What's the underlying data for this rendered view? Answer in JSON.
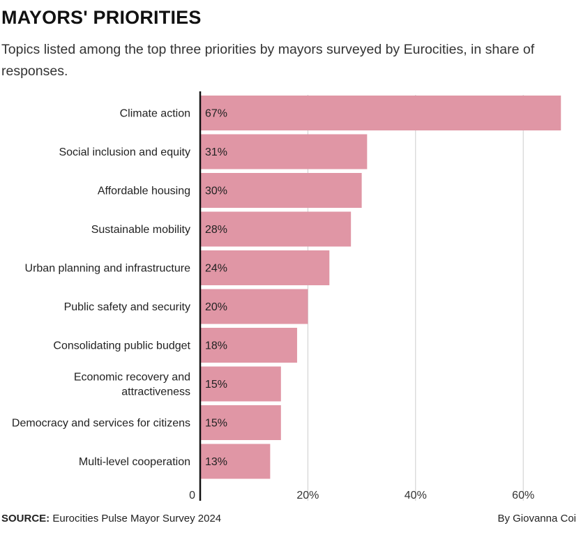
{
  "header": {
    "title": "MAYORS' PRIORITIES",
    "subtitle": "Topics listed among the top three priorities by mayors surveyed by Eurocities, in share of responses."
  },
  "footer": {
    "source_label": "SOURCE:",
    "source_text": "Eurocities Pulse Mayor Survey 2024",
    "credit": "By Giovanna Coi"
  },
  "colors": {
    "bar": "#e096a5",
    "axis": "#111111",
    "grid": "#cccccc"
  },
  "chart_data": {
    "type": "bar",
    "orientation": "horizontal",
    "categories": [
      "Climate action",
      "Social inclusion and equity",
      "Affordable housing",
      "Sustainable mobility",
      "Urban planning and infrastructure",
      "Public safety and security",
      "Consolidating public budget",
      "Economic recovery and attractiveness",
      "Democracy and services for citizens",
      "Multi-level cooperation"
    ],
    "category_lines": [
      [
        "Climate action"
      ],
      [
        "Social inclusion and equity"
      ],
      [
        "Affordable housing"
      ],
      [
        "Sustainable mobility"
      ],
      [
        "Urban planning and infrastructure"
      ],
      [
        "Public safety and security"
      ],
      [
        "Consolidating public budget"
      ],
      [
        "Economic recovery and",
        "attractiveness"
      ],
      [
        "Democracy and services for citizens"
      ],
      [
        "Multi-level cooperation"
      ]
    ],
    "values": [
      67,
      31,
      30,
      28,
      24,
      20,
      18,
      15,
      15,
      13
    ],
    "value_labels": [
      "67%",
      "31%",
      "30%",
      "28%",
      "24%",
      "20%",
      "18%",
      "15%",
      "15%",
      "13%"
    ],
    "xlim": [
      0,
      70
    ],
    "xticks": [
      0,
      20,
      40,
      60
    ],
    "xtick_labels": [
      "0",
      "20%",
      "40%",
      "60%"
    ],
    "grid": true
  }
}
